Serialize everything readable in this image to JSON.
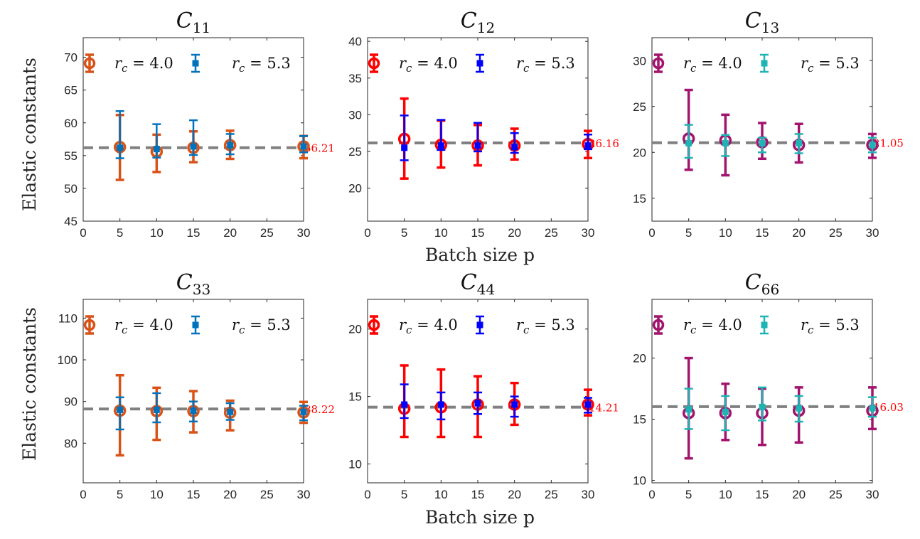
{
  "figure": {
    "ylabel": "Elastic constants",
    "xlabel": "Batch size p",
    "xticks": [
      0,
      5,
      10,
      15,
      20,
      25,
      30
    ],
    "xlim": [
      0,
      30
    ]
  },
  "chart_data": [
    {
      "type": "scatter",
      "title_main": "C",
      "title_sub": "11",
      "ylim": [
        45,
        73
      ],
      "yticks": [
        45,
        50,
        55,
        60,
        65,
        70
      ],
      "ref_value": 56.21,
      "ref_label": "56.21",
      "colors": {
        "a": "#D95319",
        "b": "#0072BD"
      },
      "series": [
        {
          "name": "r_c = 4.0",
          "legend_main": "r",
          "legend_sub": "c",
          "legend_val": " = 4.0",
          "marker": "circle",
          "x": [
            5,
            10,
            15,
            20,
            30
          ],
          "y": [
            56.3,
            55.6,
            56.2,
            56.6,
            56.4
          ],
          "lo": [
            51.3,
            52.5,
            54.0,
            54.5,
            54.6
          ],
          "hi": [
            61.2,
            58.2,
            58.7,
            58.8,
            58.0
          ]
        },
        {
          "name": "r_c = 5.3",
          "legend_main": "r",
          "legend_sub": "c",
          "legend_val": " = 5.3",
          "marker": "square",
          "x": [
            5,
            10,
            15,
            20,
            30
          ],
          "y": [
            56.2,
            56.0,
            56.4,
            56.6,
            56.4
          ],
          "lo": [
            54.6,
            54.7,
            55.1,
            55.2,
            55.5
          ],
          "hi": [
            61.8,
            59.8,
            60.4,
            58.3,
            58.0
          ]
        }
      ]
    },
    {
      "type": "scatter",
      "title_main": "C",
      "title_sub": "12",
      "ylim": [
        15.5,
        40.5
      ],
      "yticks": [
        20,
        25,
        30,
        35,
        40
      ],
      "ref_value": 26.16,
      "ref_label": "26.16",
      "colors": {
        "a": "#FF0000",
        "b": "#0000FF"
      },
      "series": [
        {
          "name": "r_c = 4.0",
          "legend_main": "r",
          "legend_sub": "c",
          "legend_val": " = 4.0",
          "marker": "circle",
          "x": [
            5,
            10,
            15,
            20,
            30
          ],
          "y": [
            26.7,
            25.9,
            25.8,
            25.8,
            26.0
          ],
          "lo": [
            21.3,
            22.8,
            23.1,
            23.9,
            24.1
          ],
          "hi": [
            32.2,
            29.2,
            28.6,
            28.1,
            27.8
          ]
        },
        {
          "name": "r_c = 5.3",
          "legend_main": "r",
          "legend_sub": "c",
          "legend_val": " = 5.3",
          "marker": "square",
          "x": [
            5,
            10,
            15,
            20,
            30
          ],
          "y": [
            25.5,
            25.8,
            25.8,
            25.6,
            25.8
          ],
          "lo": [
            23.8,
            25.2,
            25.0,
            24.8,
            25.3
          ],
          "hi": [
            29.9,
            29.3,
            28.9,
            27.5,
            27.3
          ]
        }
      ]
    },
    {
      "type": "scatter",
      "title_main": "C",
      "title_sub": "13",
      "ylim": [
        12.5,
        32.5
      ],
      "yticks": [
        15,
        20,
        25,
        30
      ],
      "ref_value": 21.05,
      "ref_label": "21.05",
      "colors": {
        "a": "#A2146E",
        "b": "#1FB4B4"
      },
      "series": [
        {
          "name": "r_c = 4.0",
          "legend_main": "r",
          "legend_sub": "c",
          "legend_val": " = 4.0",
          "marker": "circle",
          "x": [
            5,
            10,
            15,
            20,
            30
          ],
          "y": [
            21.5,
            21.3,
            21.1,
            20.8,
            20.8
          ],
          "lo": [
            18.1,
            17.5,
            19.3,
            18.9,
            19.4
          ],
          "hi": [
            26.8,
            24.1,
            23.2,
            23.1,
            22.0
          ]
        },
        {
          "name": "r_c = 5.3",
          "legend_main": "r",
          "legend_sub": "c",
          "legend_val": " = 5.3",
          "marker": "square",
          "x": [
            5,
            10,
            15,
            20,
            30
          ],
          "y": [
            21.0,
            21.0,
            21.0,
            21.0,
            20.8
          ],
          "lo": [
            19.4,
            19.6,
            20.0,
            19.9,
            20.0
          ],
          "hi": [
            23.0,
            21.9,
            21.6,
            22.0,
            21.6
          ]
        }
      ]
    },
    {
      "type": "scatter",
      "title_main": "C",
      "title_sub": "33",
      "ylim": [
        70.5,
        114.5
      ],
      "yticks": [
        80,
        90,
        100,
        110
      ],
      "ref_value": 88.22,
      "ref_label": "88.22",
      "colors": {
        "a": "#D95319",
        "b": "#0072BD"
      },
      "series": [
        {
          "name": "r_c = 4.0",
          "legend_main": "r",
          "legend_sub": "c",
          "legend_val": " = 4.0",
          "marker": "circle",
          "x": [
            5,
            10,
            15,
            20,
            30
          ],
          "y": [
            87.8,
            87.7,
            87.7,
            87.3,
            87.4
          ],
          "lo": [
            77.1,
            80.8,
            82.6,
            83.1,
            84.9
          ],
          "hi": [
            96.3,
            93.3,
            92.5,
            90.2,
            89.9
          ]
        },
        {
          "name": "r_c = 5.3",
          "legend_main": "r",
          "legend_sub": "c",
          "legend_val": " = 5.3",
          "marker": "square",
          "x": [
            5,
            10,
            15,
            20,
            30
          ],
          "y": [
            88.0,
            88.0,
            87.8,
            87.5,
            87.5
          ],
          "lo": [
            83.3,
            85.0,
            85.2,
            85.6,
            85.5
          ],
          "hi": [
            91.0,
            92.0,
            90.0,
            89.6,
            89.0
          ]
        }
      ]
    },
    {
      "type": "scatter",
      "title_main": "C",
      "title_sub": "44",
      "ylim": [
        8.6,
        22.2
      ],
      "yticks": [
        10,
        15,
        20
      ],
      "ref_value": 14.21,
      "ref_label": "14.21",
      "colors": {
        "a": "#FF0000",
        "b": "#0000FF"
      },
      "series": [
        {
          "name": "r_c = 4.0",
          "legend_main": "r",
          "legend_sub": "c",
          "legend_val": " = 4.0",
          "marker": "circle",
          "x": [
            5,
            10,
            15,
            20,
            30
          ],
          "y": [
            14.1,
            14.2,
            14.4,
            14.4,
            14.4
          ],
          "lo": [
            12.0,
            12.0,
            12.0,
            12.9,
            13.6
          ],
          "hi": [
            17.3,
            17.0,
            16.5,
            16.0,
            15.5
          ]
        },
        {
          "name": "r_c = 5.3",
          "legend_main": "r",
          "legend_sub": "c",
          "legend_val": " = 5.3",
          "marker": "square",
          "x": [
            5,
            10,
            15,
            20,
            30
          ],
          "y": [
            14.4,
            14.4,
            14.5,
            14.4,
            14.4
          ],
          "lo": [
            13.4,
            13.3,
            13.7,
            13.5,
            13.8
          ],
          "hi": [
            15.9,
            15.3,
            15.3,
            15.0,
            14.9
          ]
        }
      ]
    },
    {
      "type": "scatter",
      "title_main": "C",
      "title_sub": "66",
      "ylim": [
        9.8,
        24.8
      ],
      "yticks": [
        10,
        15,
        20
      ],
      "ref_value": 16.03,
      "ref_label": "16.03",
      "colors": {
        "a": "#A2146E",
        "b": "#1FB4B4"
      },
      "series": [
        {
          "name": "r_c = 4.0",
          "legend_main": "r",
          "legend_sub": "c",
          "legend_val": " = 4.0",
          "marker": "circle",
          "x": [
            5,
            10,
            15,
            20,
            30
          ],
          "y": [
            15.5,
            15.5,
            15.5,
            15.7,
            15.7
          ],
          "lo": [
            11.8,
            13.3,
            12.9,
            13.1,
            14.2
          ],
          "hi": [
            20.0,
            17.9,
            17.5,
            17.6,
            17.6
          ]
        },
        {
          "name": "r_c = 5.3",
          "legend_main": "r",
          "legend_sub": "c",
          "legend_val": " = 5.3",
          "marker": "square",
          "x": [
            5,
            10,
            15,
            20,
            30
          ],
          "y": [
            15.8,
            15.6,
            16.0,
            15.9,
            15.9
          ],
          "lo": [
            14.2,
            14.1,
            14.9,
            14.8,
            15.2
          ],
          "hi": [
            17.5,
            16.9,
            17.6,
            16.9,
            16.8
          ]
        }
      ]
    }
  ]
}
